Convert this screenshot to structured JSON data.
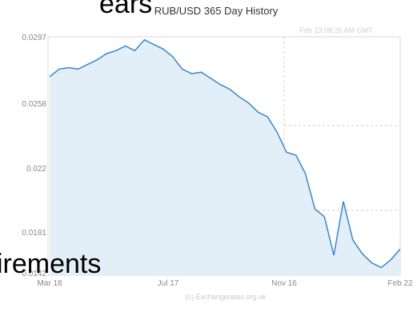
{
  "overlay": {
    "top_text": "ears",
    "bottom_text": "irements"
  },
  "chart_data": {
    "type": "area",
    "title": "RUB/USD  365 Day History",
    "annotation": "Feb 23  08:26 AM GMT",
    "credit": "(c) Exchangerates.org.uk",
    "x_ticks": [
      "Mar 18",
      "Jul 17",
      "Nov 16",
      "Feb 22"
    ],
    "y_ticks": [
      "0.0142",
      "0.0181",
      "0.022",
      "0.0258",
      "0.0297"
    ],
    "ylim": [
      0.0142,
      0.0297
    ],
    "x": [
      "Mar 18",
      "Mar 28",
      "Apr 7",
      "Apr 17",
      "Apr 27",
      "May 7",
      "May 17",
      "May 27",
      "Jun 6",
      "Jun 16",
      "Jun 26",
      "Jul 6",
      "Jul 17",
      "Jul 27",
      "Aug 6",
      "Aug 16",
      "Aug 26",
      "Sep 5",
      "Sep 15",
      "Sep 25",
      "Oct 5",
      "Oct 15",
      "Oct 25",
      "Nov 4",
      "Nov 16",
      "Nov 26",
      "Dec 6",
      "Dec 16",
      "Dec 21",
      "Dec 26",
      "Jan 5",
      "Jan 10",
      "Jan 15",
      "Jan 25",
      "Feb 4",
      "Feb 9",
      "Feb 14",
      "Feb 22"
    ],
    "values": [
      0.0271,
      0.0276,
      0.0277,
      0.0276,
      0.0279,
      0.0282,
      0.0286,
      0.0288,
      0.0291,
      0.0288,
      0.0295,
      0.0292,
      0.0289,
      0.0284,
      0.0276,
      0.0273,
      0.0274,
      0.027,
      0.0266,
      0.0263,
      0.0258,
      0.0254,
      0.0248,
      0.0245,
      0.0235,
      0.0222,
      0.022,
      0.0208,
      0.0185,
      0.018,
      0.0155,
      0.019,
      0.0165,
      0.0156,
      0.015,
      0.0147,
      0.0152,
      0.0159
    ],
    "colors": {
      "line": "#3a87c8",
      "fill": "#e2eff8",
      "grid": "#d8d8d8"
    }
  }
}
